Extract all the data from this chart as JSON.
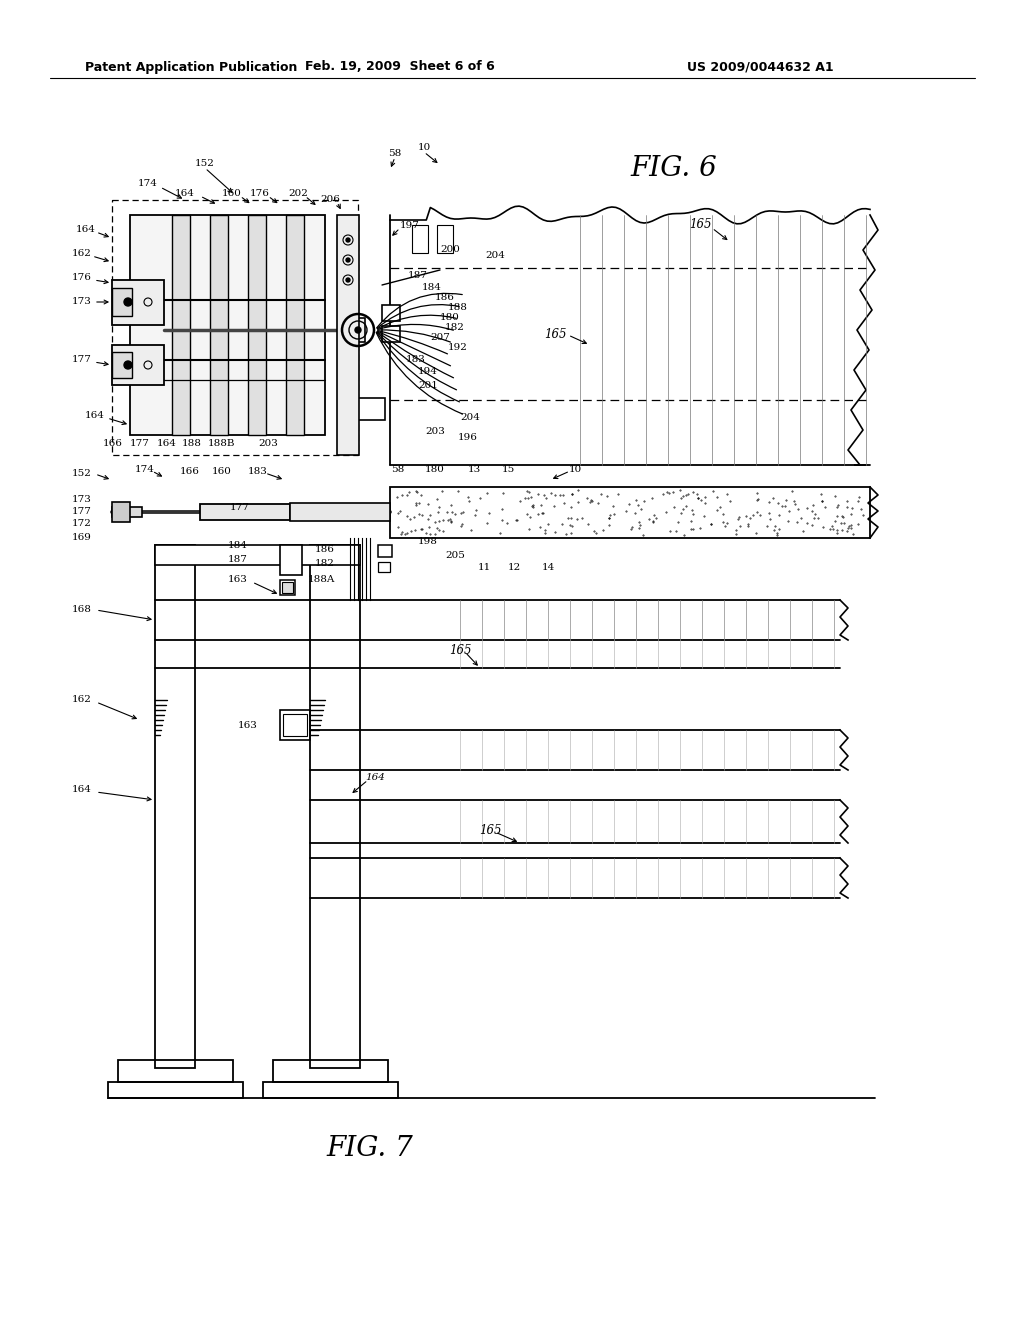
{
  "background_color": "#ffffff",
  "header_left": "Patent Application Publication",
  "header_mid": "Feb. 19, 2009  Sheet 6 of 6",
  "header_right": "US 2009/0044632 A1",
  "fig6_label": "FIG. 6",
  "fig7_label": "FIG. 7"
}
